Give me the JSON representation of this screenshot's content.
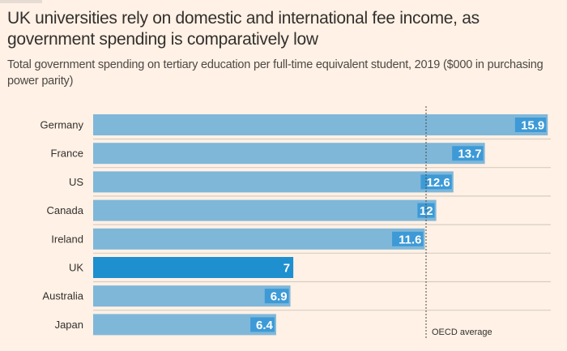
{
  "header": {
    "title": "UK universities rely on domestic and international fee income, as government spending is comparatively low",
    "subtitle": "Total government spending on tertiary education per full-time equivalent student, 2019 ($000 in purchasing power parity)"
  },
  "chart_data": {
    "type": "bar",
    "orientation": "horizontal",
    "title": "UK universities rely on domestic and international fee income, as government spending is comparatively low",
    "subtitle": "Total government spending on tertiary education per full-time equivalent student, 2019 ($000 in purchasing power parity)",
    "categories": [
      "Germany",
      "France",
      "US",
      "Canada",
      "Ireland",
      "UK",
      "Australia",
      "Japan"
    ],
    "values": [
      15.9,
      13.7,
      12.6,
      12,
      11.6,
      7,
      6.9,
      6.4
    ],
    "value_labels": [
      "15.9",
      "13.7",
      "12.6",
      "12",
      "11.6",
      "7",
      "6.9",
      "6.4"
    ],
    "highlight": "UK",
    "reference_line": {
      "label": "OECD average",
      "value": 11.7
    },
    "xlim": [
      0,
      16
    ],
    "colors": {
      "default": "#7fb7d9",
      "highlight": "#1e8fcf",
      "label_bg": "#3d9ad6",
      "reference": "#4d4845",
      "separator": "#d7cdc4"
    }
  }
}
